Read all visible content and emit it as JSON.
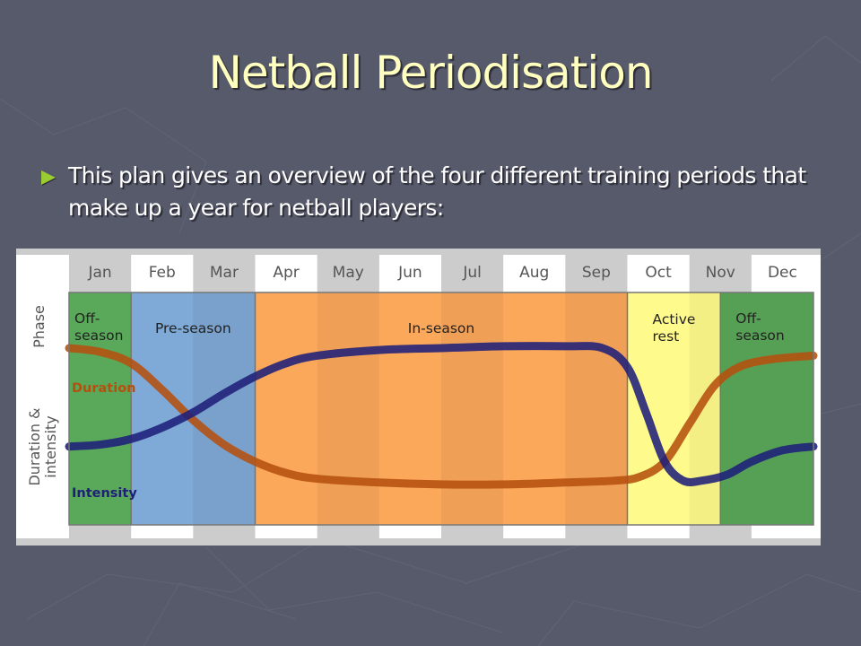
{
  "slide": {
    "title": "Netball Periodisation",
    "bullet": "This plan gives an overview of the four different training periods that make up a year for netball players:"
  },
  "colors": {
    "background": "#575a6b",
    "title": "#ffffc0",
    "bullet": "#9acd32",
    "duration": "#b5500f",
    "intensity": "#1f1f7a",
    "offseason": "#5aa85a",
    "preseason": "#7fa9d6",
    "inseason": "#fba85a",
    "activerest": "#fffa8c"
  },
  "chart_data": {
    "type": "line",
    "title": "",
    "row_labels": {
      "phase": "Phase",
      "duration_intensity_1": "Duration &",
      "duration_intensity_2": "intensity"
    },
    "categories": [
      "Jan",
      "Feb",
      "Mar",
      "Apr",
      "May",
      "Jun",
      "Jul",
      "Aug",
      "Sep",
      "Oct",
      "Nov",
      "Dec"
    ],
    "phases": [
      {
        "name": "Off-season",
        "label_lines": [
          "Off-",
          "season"
        ],
        "start_month": 0,
        "end_month": 1,
        "color": "#5aa85a"
      },
      {
        "name": "Pre-season",
        "label_lines": [
          "Pre-season"
        ],
        "start_month": 1,
        "end_month": 3,
        "color": "#7fa9d6"
      },
      {
        "name": "In-season",
        "label_lines": [
          "In-season"
        ],
        "start_month": 3,
        "end_month": 9,
        "color": "#fba85a"
      },
      {
        "name": "Active rest",
        "label_lines": [
          "Active",
          "rest"
        ],
        "start_month": 9,
        "end_month": 10.5,
        "color": "#fffa8c"
      },
      {
        "name": "Off-season",
        "label_lines": [
          "Off-",
          "season"
        ],
        "start_month": 10.5,
        "end_month": 12,
        "color": "#5aa85a"
      }
    ],
    "series": [
      {
        "name": "Duration",
        "color": "#b5500f",
        "x": [
          0,
          0.5,
          1.0,
          1.5,
          2.0,
          2.5,
          3.0,
          3.5,
          4.0,
          5.0,
          6.0,
          7.0,
          8.0,
          8.8,
          9.2,
          9.6,
          10.0,
          10.4,
          10.8,
          11.3,
          12.0
        ],
        "values": [
          0.82,
          0.8,
          0.74,
          0.6,
          0.44,
          0.31,
          0.22,
          0.16,
          0.13,
          0.11,
          0.1,
          0.1,
          0.11,
          0.12,
          0.14,
          0.22,
          0.42,
          0.62,
          0.72,
          0.76,
          0.78
        ]
      },
      {
        "name": "Intensity",
        "color": "#1f1f7a",
        "x": [
          0,
          0.5,
          1.0,
          1.5,
          2.0,
          2.5,
          3.0,
          3.5,
          4.0,
          5.0,
          6.0,
          7.0,
          8.0,
          8.6,
          9.0,
          9.3,
          9.6,
          9.9,
          10.2,
          10.6,
          11.0,
          11.5,
          12.0
        ],
        "values": [
          0.3,
          0.31,
          0.34,
          0.4,
          0.48,
          0.58,
          0.67,
          0.74,
          0.78,
          0.81,
          0.82,
          0.83,
          0.83,
          0.82,
          0.72,
          0.48,
          0.22,
          0.12,
          0.12,
          0.15,
          0.22,
          0.28,
          0.3
        ]
      }
    ],
    "xlabel": "",
    "ylabel": "Duration & intensity",
    "ylim": [
      0,
      1
    ],
    "legend": "inline labels at left (Duration above, Intensity below)"
  }
}
